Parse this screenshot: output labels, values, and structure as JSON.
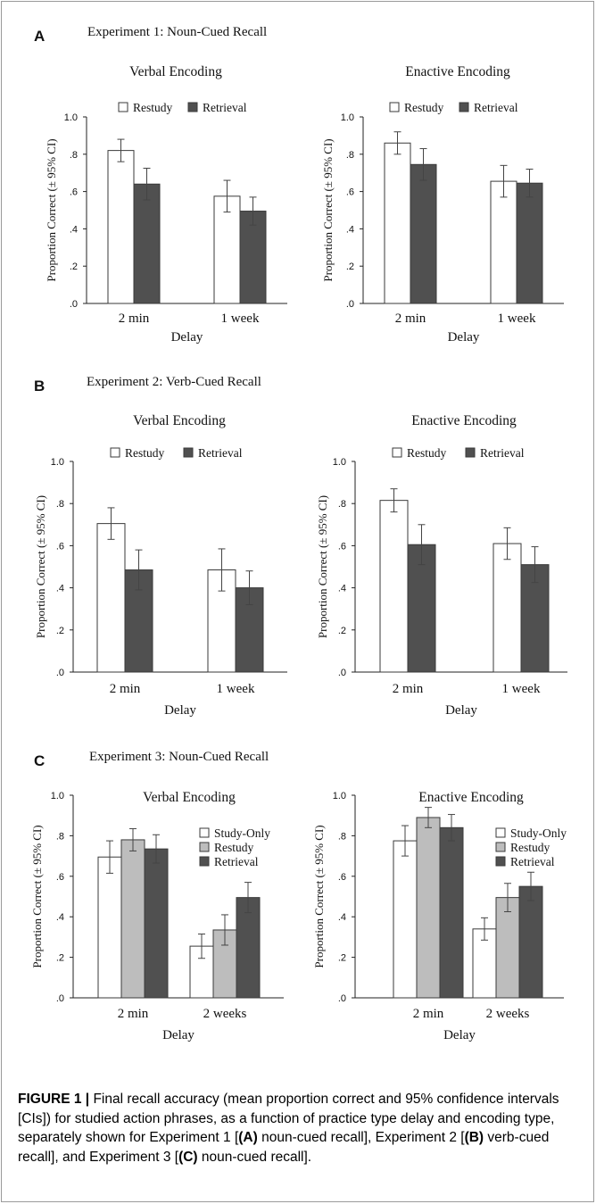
{
  "panels": [
    {
      "letter": "A",
      "title": "Experiment 1: Noun-Cued Recall",
      "charts": [
        {
          "type": "bar",
          "title": "Verbal Encoding",
          "ylabel": "Proportion Correct (± 95% CI)",
          "xlabel": "Delay",
          "categories": [
            "2 min",
            "1 week"
          ],
          "ylim": [
            0,
            1
          ],
          "yticks": [
            ".0",
            ".2",
            ".4",
            ".6",
            ".8",
            "1.0"
          ],
          "legend_placement": "top",
          "series": [
            {
              "name": "Restudy",
              "color": "#ffffff",
              "values": [
                0.82,
                0.575
              ],
              "ci": [
                0.06,
                0.085
              ]
            },
            {
              "name": "Retrieval",
              "color": "#505050",
              "values": [
                0.64,
                0.495
              ],
              "ci": [
                0.085,
                0.075
              ]
            }
          ]
        },
        {
          "type": "bar",
          "title": "Enactive Encoding",
          "ylabel": "Proportion Correct (± 95% CI)",
          "xlabel": "Delay",
          "categories": [
            "2 min",
            "1 week"
          ],
          "ylim": [
            0,
            1
          ],
          "yticks": [
            ".0",
            ".2",
            ".4",
            ".6",
            ".8",
            "1.0"
          ],
          "legend_placement": "top",
          "series": [
            {
              "name": "Restudy",
              "color": "#ffffff",
              "values": [
                0.86,
                0.655
              ],
              "ci": [
                0.06,
                0.085
              ]
            },
            {
              "name": "Retrieval",
              "color": "#505050",
              "values": [
                0.745,
                0.645
              ],
              "ci": [
                0.085,
                0.075
              ]
            }
          ]
        }
      ]
    },
    {
      "letter": "B",
      "title": "Experiment 2: Verb-Cued Recall",
      "charts": [
        {
          "type": "bar",
          "title": "Verbal Encoding",
          "ylabel": "Proportion Correct (± 95% CI)",
          "xlabel": "Delay",
          "categories": [
            "2 min",
            "1 week"
          ],
          "ylim": [
            0,
            1
          ],
          "yticks": [
            ".0",
            ".2",
            ".4",
            ".6",
            ".8",
            "1.0"
          ],
          "legend_placement": "top",
          "series": [
            {
              "name": "Restudy",
              "color": "#ffffff",
              "values": [
                0.705,
                0.485
              ],
              "ci": [
                0.075,
                0.1
              ]
            },
            {
              "name": "Retrieval",
              "color": "#505050",
              "values": [
                0.485,
                0.4
              ],
              "ci": [
                0.095,
                0.08
              ]
            }
          ]
        },
        {
          "type": "bar",
          "title": "Enactive Encoding",
          "ylabel": "Proportion Correct (± 95% CI)",
          "xlabel": "Delay",
          "categories": [
            "2 min",
            "1 week"
          ],
          "ylim": [
            0,
            1
          ],
          "yticks": [
            ".0",
            ".2",
            ".4",
            ".6",
            ".8",
            "1.0"
          ],
          "legend_placement": "top",
          "series": [
            {
              "name": "Restudy",
              "color": "#ffffff",
              "values": [
                0.815,
                0.61
              ],
              "ci": [
                0.055,
                0.075
              ]
            },
            {
              "name": "Retrieval",
              "color": "#505050",
              "values": [
                0.605,
                0.51
              ],
              "ci": [
                0.095,
                0.085
              ]
            }
          ]
        }
      ]
    },
    {
      "letter": "C",
      "title": "Experiment 3: Noun-Cued Recall",
      "charts": [
        {
          "type": "bar",
          "title": "Verbal Encoding",
          "ylabel": "Proportion Correct (± 95% CI)",
          "xlabel": "Delay",
          "categories": [
            "2 min",
            "2 weeks"
          ],
          "ylim": [
            0,
            1
          ],
          "yticks": [
            ".0",
            ".2",
            ".4",
            ".6",
            ".8",
            "1.0"
          ],
          "legend_placement": "top-right",
          "series": [
            {
              "name": "Study-Only",
              "color": "#ffffff",
              "values": [
                0.695,
                0.255
              ],
              "ci": [
                0.08,
                0.06
              ]
            },
            {
              "name": "Restudy",
              "color": "#bdbdbd",
              "values": [
                0.78,
                0.335
              ],
              "ci": [
                0.055,
                0.075
              ]
            },
            {
              "name": "Retrieval",
              "color": "#505050",
              "values": [
                0.735,
                0.495
              ],
              "ci": [
                0.07,
                0.075
              ]
            }
          ]
        },
        {
          "type": "bar",
          "title": "Enactive Encoding",
          "ylabel": "Proportion Correct (± 95% CI)",
          "xlabel": "Delay",
          "categories": [
            "2 min",
            "2 weeks"
          ],
          "ylim": [
            0,
            1
          ],
          "yticks": [
            ".0",
            ".2",
            ".4",
            ".6",
            ".8",
            "1.0"
          ],
          "legend_placement": "top-right",
          "series": [
            {
              "name": "Study-Only",
              "color": "#ffffff",
              "values": [
                0.775,
                0.34
              ],
              "ci": [
                0.075,
                0.055
              ]
            },
            {
              "name": "Restudy",
              "color": "#bdbdbd",
              "values": [
                0.89,
                0.495
              ],
              "ci": [
                0.05,
                0.07
              ]
            },
            {
              "name": "Retrieval",
              "color": "#505050",
              "values": [
                0.84,
                0.55
              ],
              "ci": [
                0.065,
                0.07
              ]
            }
          ]
        }
      ]
    }
  ],
  "caption": {
    "label": "FIGURE 1 |",
    "segments": [
      {
        "text": " Final recall accuracy (mean proportion correct and 95% confidence intervals [CIs]) for studied action phrases, as a function of practice type delay and encoding type, separately shown for Experiment 1 [",
        "bold": false
      },
      {
        "text": "(A)",
        "bold": true
      },
      {
        "text": " noun-cued recall], Experiment 2 [",
        "bold": false
      },
      {
        "text": "(B)",
        "bold": true
      },
      {
        "text": " verb-cued recall], and Experiment 3 [",
        "bold": false
      },
      {
        "text": "(C)",
        "bold": true
      },
      {
        "text": " noun-cued recall].",
        "bold": false
      }
    ]
  },
  "chart_data": [
    {
      "panel": "A",
      "type": "bar",
      "title": "Verbal Encoding",
      "xlabel": "Delay",
      "ylabel": "Proportion Correct (± 95% CI)",
      "categories": [
        "2 min",
        "1 week"
      ],
      "ylim": [
        0,
        1
      ],
      "series": [
        {
          "name": "Restudy",
          "values": [
            0.82,
            0.575
          ]
        },
        {
          "name": "Retrieval",
          "values": [
            0.64,
            0.495
          ]
        }
      ]
    },
    {
      "panel": "A",
      "type": "bar",
      "title": "Enactive Encoding",
      "xlabel": "Delay",
      "ylabel": "Proportion Correct (± 95% CI)",
      "categories": [
        "2 min",
        "1 week"
      ],
      "ylim": [
        0,
        1
      ],
      "series": [
        {
          "name": "Restudy",
          "values": [
            0.86,
            0.655
          ]
        },
        {
          "name": "Retrieval",
          "values": [
            0.745,
            0.645
          ]
        }
      ]
    },
    {
      "panel": "B",
      "type": "bar",
      "title": "Verbal Encoding",
      "xlabel": "Delay",
      "ylabel": "Proportion Correct (± 95% CI)",
      "categories": [
        "2 min",
        "1 week"
      ],
      "ylim": [
        0,
        1
      ],
      "series": [
        {
          "name": "Restudy",
          "values": [
            0.705,
            0.485
          ]
        },
        {
          "name": "Retrieval",
          "values": [
            0.485,
            0.4
          ]
        }
      ]
    },
    {
      "panel": "B",
      "type": "bar",
      "title": "Enactive Encoding",
      "xlabel": "Delay",
      "ylabel": "Proportion Correct (± 95% CI)",
      "categories": [
        "2 min",
        "1 week"
      ],
      "ylim": [
        0,
        1
      ],
      "series": [
        {
          "name": "Restudy",
          "values": [
            0.815,
            0.61
          ]
        },
        {
          "name": "Retrieval",
          "values": [
            0.605,
            0.51
          ]
        }
      ]
    },
    {
      "panel": "C",
      "type": "bar",
      "title": "Verbal Encoding",
      "xlabel": "Delay",
      "ylabel": "Proportion Correct (± 95% CI)",
      "categories": [
        "2 min",
        "2 weeks"
      ],
      "ylim": [
        0,
        1
      ],
      "series": [
        {
          "name": "Study-Only",
          "values": [
            0.695,
            0.255
          ]
        },
        {
          "name": "Restudy",
          "values": [
            0.78,
            0.335
          ]
        },
        {
          "name": "Retrieval",
          "values": [
            0.735,
            0.495
          ]
        }
      ]
    },
    {
      "panel": "C",
      "type": "bar",
      "title": "Enactive Encoding",
      "xlabel": "Delay",
      "ylabel": "Proportion Correct (± 95% CI)",
      "categories": [
        "2 min",
        "2 weeks"
      ],
      "ylim": [
        0,
        1
      ],
      "series": [
        {
          "name": "Study-Only",
          "values": [
            0.775,
            0.34
          ]
        },
        {
          "name": "Restudy",
          "values": [
            0.89,
            0.495
          ]
        },
        {
          "name": "Retrieval",
          "values": [
            0.84,
            0.55
          ]
        }
      ]
    }
  ]
}
